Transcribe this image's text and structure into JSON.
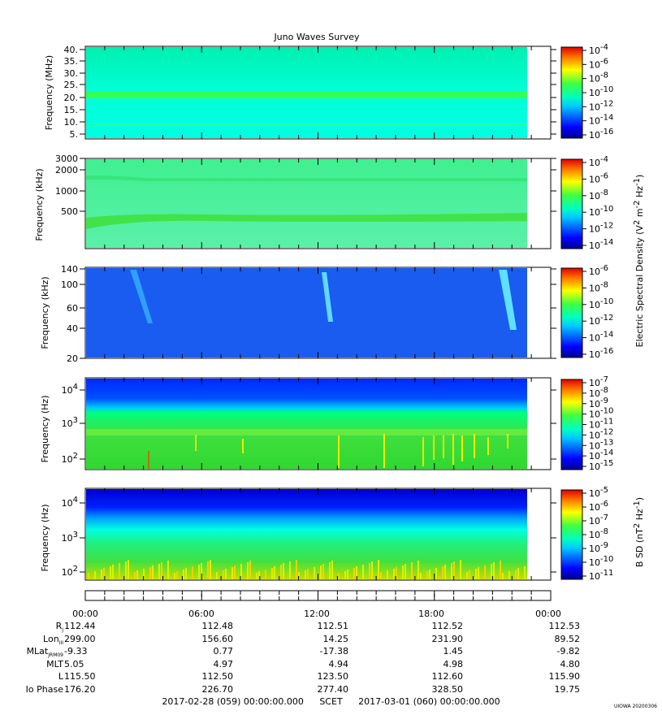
{
  "chart_data": {
    "type": "heatmap",
    "title": "Juno Waves Survey",
    "panels": [
      {
        "id": "p1",
        "ylabel": "Frequency (MHz)",
        "yscale": "linear",
        "yticks": [
          "40.",
          "35.",
          "30.",
          "25.",
          "20.",
          "15.",
          "10.",
          "5."
        ],
        "colorbar_ticks": [
          "10^-4",
          "10^-6",
          "10^-8",
          "10^-10",
          "10^-12",
          "10^-14",
          "10^-16"
        ]
      },
      {
        "id": "p2",
        "ylabel": "Frequency (kHz)",
        "yscale": "log",
        "yticks": [
          "3000",
          "2000",
          "1000",
          "500"
        ],
        "colorbar_ticks": [
          "10^-4",
          "10^-6",
          "10^-8",
          "10^-10",
          "10^-12",
          "10^-14"
        ]
      },
      {
        "id": "p3",
        "ylabel": "Frequency (kHz)",
        "yscale": "log",
        "yticks": [
          "140",
          "100",
          "60",
          "40",
          "20"
        ],
        "colorbar_ticks": [
          "10^-6",
          "10^-8",
          "10^-10",
          "10^-12",
          "10^-14",
          "10^-16"
        ]
      },
      {
        "id": "p4",
        "ylabel": "Frequency (Hz)",
        "yscale": "log",
        "yticks": [
          "10^4",
          "10^3",
          "10^2"
        ],
        "colorbar_ticks": [
          "10^-7",
          "10^-8",
          "10^-9",
          "10^-10",
          "10^-11",
          "10^-12",
          "10^-13",
          "10^-14",
          "10^-15"
        ]
      },
      {
        "id": "p5",
        "ylabel": "Frequency (Hz)",
        "yscale": "log",
        "yticks": [
          "10^4",
          "10^3",
          "10^2"
        ],
        "colorbar_ticks": [
          "10^-5",
          "10^-6",
          "10^-7",
          "10^-8",
          "10^-9",
          "10^-10",
          "10^-11"
        ]
      }
    ],
    "colorbar_label_e": "Electric Spectral Density (V^2 m^-2 Hz^-1)",
    "colorbar_label_b": "B SD (nT^2 Hz^-1)",
    "x_ticks": [
      "00:00",
      "06:00",
      "12:00",
      "18:00",
      "00:00"
    ],
    "ephemeris": [
      {
        "label": "R_J",
        "values": [
          "112.44",
          "112.48",
          "112.51",
          "112.52",
          "112.53"
        ]
      },
      {
        "label": "Lon_III",
        "values": [
          "299.00",
          "156.60",
          "14.25",
          "231.90",
          "89.52"
        ]
      },
      {
        "label": "MLat_JRM09",
        "values": [
          "-9.33",
          "0.77",
          "-17.38",
          "1.45",
          "-9.82"
        ]
      },
      {
        "label": "MLT",
        "values": [
          "5.05",
          "4.97",
          "4.94",
          "4.98",
          "4.80"
        ]
      },
      {
        "label": "L",
        "values": [
          "115.50",
          "112.50",
          "123.50",
          "112.60",
          "115.90"
        ]
      },
      {
        "label": "Io Phase",
        "values": [
          "176.20",
          "226.70",
          "277.40",
          "328.50",
          "19.75"
        ]
      }
    ]
  },
  "footer": {
    "start": "2017-02-28 (059) 00:00:00.000",
    "mid": "SCET",
    "end": "2017-03-01 (060) 00:00:00.000"
  },
  "stamp": "UIOWA 20200306",
  "colors": {
    "jet": [
      "#00008f",
      "#0000ff",
      "#0080ff",
      "#00ffff",
      "#80ff80",
      "#ffff00",
      "#ff8000",
      "#ff0000",
      "#800000"
    ]
  }
}
